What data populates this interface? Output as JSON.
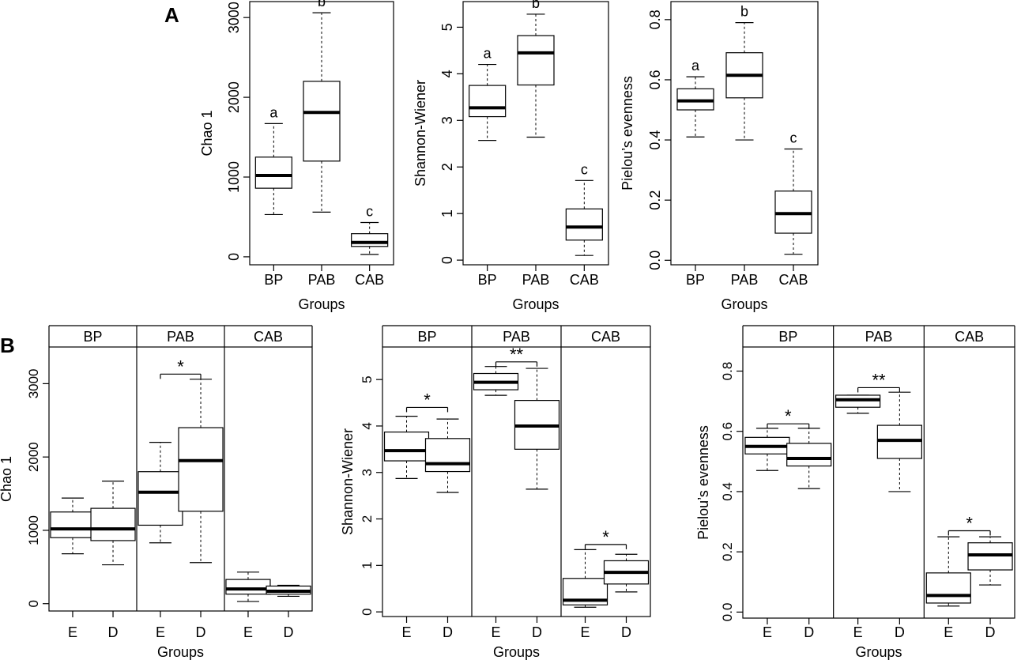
{
  "panel_labels": {
    "a": "A",
    "b": "B"
  },
  "colors": {
    "ink": "#000000",
    "box_fill": "#ffffff"
  },
  "chart_data": [
    {
      "type": "boxplot",
      "panel": "A",
      "title": "",
      "xlabel": "Groups",
      "ylabel": "Chao 1",
      "categories": [
        "BP",
        "PAB",
        "CAB"
      ],
      "ylim": [
        -100,
        3200
      ],
      "yticks": [
        0,
        1000,
        2000,
        3000
      ],
      "boxes": [
        {
          "whisker_low": 530,
          "q1": 860,
          "median": 1020,
          "q3": 1250,
          "whisker_high": 1670
        },
        {
          "whisker_low": 560,
          "q1": 1200,
          "median": 1810,
          "q3": 2200,
          "whisker_high": 3060
        },
        {
          "whisker_low": 30,
          "q1": 130,
          "median": 180,
          "q3": 290,
          "whisker_high": 430
        }
      ],
      "letters": [
        "a",
        "b",
        "c"
      ]
    },
    {
      "type": "boxplot",
      "panel": "A",
      "title": "",
      "xlabel": "Groups",
      "ylabel": "Shannon-Wiener",
      "categories": [
        "BP",
        "PAB",
        "CAB"
      ],
      "ylim": [
        -0.1,
        5.55
      ],
      "yticks": [
        0,
        1,
        2,
        3,
        4,
        5
      ],
      "boxes": [
        {
          "whisker_low": 2.57,
          "q1": 3.08,
          "median": 3.27,
          "q3": 3.75,
          "whisker_high": 4.2
        },
        {
          "whisker_low": 2.64,
          "q1": 3.76,
          "median": 4.45,
          "q3": 4.82,
          "whisker_high": 5.28
        },
        {
          "whisker_low": 0.1,
          "q1": 0.43,
          "median": 0.71,
          "q3": 1.1,
          "whisker_high": 1.71
        }
      ],
      "letters": [
        "a",
        "b",
        "c"
      ]
    },
    {
      "type": "boxplot",
      "panel": "A",
      "title": "",
      "xlabel": "Groups",
      "ylabel": "Pielou’s evenness",
      "categories": [
        "BP",
        "PAB",
        "CAB"
      ],
      "ylim": [
        -0.015,
        0.86
      ],
      "yticks": [
        0.0,
        0.2,
        0.4,
        0.6,
        0.8
      ],
      "boxes": [
        {
          "whisker_low": 0.41,
          "q1": 0.5,
          "median": 0.53,
          "q3": 0.57,
          "whisker_high": 0.61
        },
        {
          "whisker_low": 0.4,
          "q1": 0.54,
          "median": 0.615,
          "q3": 0.69,
          "whisker_high": 0.79
        },
        {
          "whisker_low": 0.02,
          "q1": 0.09,
          "median": 0.155,
          "q3": 0.23,
          "whisker_high": 0.37
        }
      ],
      "letters": [
        "a",
        "b",
        "c"
      ]
    },
    {
      "type": "boxplot",
      "panel": "B",
      "title": "",
      "xlabel": "Groups",
      "ylabel": "Chao 1",
      "facets": [
        "BP",
        "PAB",
        "CAB"
      ],
      "categories": [
        "E",
        "D"
      ],
      "ylim": [
        -100,
        3500
      ],
      "yticks": [
        0,
        1000,
        2000,
        3000
      ],
      "boxes": [
        {
          "whisker_low": 680,
          "q1": 900,
          "median": 1020,
          "q3": 1250,
          "whisker_high": 1440
        },
        {
          "whisker_low": 530,
          "q1": 860,
          "median": 1020,
          "q3": 1300,
          "whisker_high": 1670
        },
        {
          "whisker_low": 830,
          "q1": 1070,
          "median": 1520,
          "q3": 1800,
          "whisker_high": 2200
        },
        {
          "whisker_low": 560,
          "q1": 1260,
          "median": 1950,
          "q3": 2400,
          "whisker_high": 3060
        },
        {
          "whisker_low": 30,
          "q1": 130,
          "median": 200,
          "q3": 330,
          "whisker_high": 430
        },
        {
          "whisker_low": 100,
          "q1": 130,
          "median": 170,
          "q3": 240,
          "whisker_high": 250
        }
      ],
      "significance": [
        {
          "facet": "PAB",
          "label": "*",
          "bracket_y": 3130
        }
      ]
    },
    {
      "type": "boxplot",
      "panel": "B",
      "title": "",
      "xlabel": "Groups",
      "ylabel": "Shannon-Wiener",
      "facets": [
        "BP",
        "PAB",
        "CAB"
      ],
      "categories": [
        "E",
        "D"
      ],
      "ylim": [
        -0.1,
        5.7
      ],
      "yticks": [
        0,
        1,
        2,
        3,
        4,
        5
      ],
      "boxes": [
        {
          "whisker_low": 2.87,
          "q1": 3.25,
          "median": 3.47,
          "q3": 3.87,
          "whisker_high": 4.21
        },
        {
          "whisker_low": 2.57,
          "q1": 3.02,
          "median": 3.19,
          "q3": 3.73,
          "whisker_high": 4.15
        },
        {
          "whisker_low": 4.66,
          "q1": 4.78,
          "median": 4.94,
          "q3": 5.13,
          "whisker_high": 5.28
        },
        {
          "whisker_low": 2.64,
          "q1": 3.5,
          "median": 4.0,
          "q3": 4.55,
          "whisker_high": 5.24
        },
        {
          "whisker_low": 0.1,
          "q1": 0.15,
          "median": 0.25,
          "q3": 0.72,
          "whisker_high": 1.34
        },
        {
          "whisker_low": 0.43,
          "q1": 0.6,
          "median": 0.85,
          "q3": 1.1,
          "whisker_high": 1.24
        }
      ],
      "significance": [
        {
          "facet": "BP",
          "label": "*",
          "bracket_y": 4.4
        },
        {
          "facet": "PAB",
          "label": "**",
          "bracket_y": 5.38
        },
        {
          "facet": "CAB",
          "label": "*",
          "bracket_y": 1.45
        }
      ]
    },
    {
      "type": "boxplot",
      "panel": "B",
      "title": "",
      "xlabel": "Groups",
      "ylabel": "Pielou’s evenness",
      "facets": [
        "BP",
        "PAB",
        "CAB"
      ],
      "categories": [
        "E",
        "D"
      ],
      "ylim": [
        -0.02,
        0.88
      ],
      "yticks": [
        0.0,
        0.2,
        0.4,
        0.6,
        0.8
      ],
      "boxes": [
        {
          "whisker_low": 0.47,
          "q1": 0.525,
          "median": 0.55,
          "q3": 0.58,
          "whisker_high": 0.61
        },
        {
          "whisker_low": 0.41,
          "q1": 0.485,
          "median": 0.51,
          "q3": 0.56,
          "whisker_high": 0.61
        },
        {
          "whisker_low": 0.66,
          "q1": 0.68,
          "median": 0.705,
          "q3": 0.72,
          "whisker_high": 0.72
        },
        {
          "whisker_low": 0.4,
          "q1": 0.51,
          "median": 0.57,
          "q3": 0.62,
          "whisker_high": 0.73
        },
        {
          "whisker_low": 0.02,
          "q1": 0.03,
          "median": 0.055,
          "q3": 0.13,
          "whisker_high": 0.25
        },
        {
          "whisker_low": 0.09,
          "q1": 0.14,
          "median": 0.19,
          "q3": 0.23,
          "whisker_high": 0.25
        }
      ],
      "significance": [
        {
          "facet": "BP",
          "label": "*",
          "bracket_y": 0.625
        },
        {
          "facet": "PAB",
          "label": "**",
          "bracket_y": 0.745
        },
        {
          "facet": "CAB",
          "label": "*",
          "bracket_y": 0.27
        }
      ]
    }
  ]
}
